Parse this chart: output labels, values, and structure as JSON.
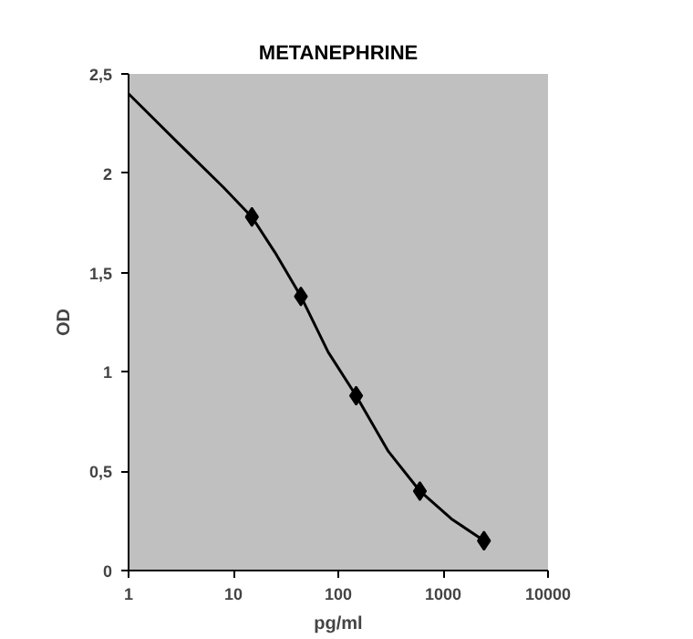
{
  "chart_data": {
    "type": "line",
    "title": "METANEPHRINE",
    "xlabel": "pg/ml",
    "ylabel": "OD",
    "log": "x",
    "xlim": [
      1,
      10000
    ],
    "xticks": [
      1,
      10,
      100,
      1000,
      10000
    ],
    "ylim": [
      0,
      2.5
    ],
    "yticks": [
      {
        "value": 0,
        "label": "0"
      },
      {
        "value": 0.5,
        "label": "0,5"
      },
      {
        "value": 1,
        "label": "1"
      },
      {
        "value": 1.5,
        "label": "1,5"
      },
      {
        "value": 2,
        "label": "2"
      },
      {
        "value": 2.5,
        "label": "2,5"
      }
    ],
    "grid": false,
    "series": [
      {
        "marker": "none",
        "color": "#000000",
        "x": [
          1,
          3,
          8,
          15,
          25,
          44,
          80,
          148,
          300,
          600,
          1200,
          2450
        ],
        "values": [
          2.4,
          2.15,
          1.93,
          1.78,
          1.6,
          1.38,
          1.1,
          0.88,
          0.6,
          0.4,
          0.26,
          0.15
        ]
      },
      {
        "type": "scatter",
        "marker": "diamond",
        "color": "#000000",
        "x": [
          15,
          44,
          148,
          600,
          2450
        ],
        "values": [
          1.78,
          1.38,
          0.88,
          0.4,
          0.15
        ]
      }
    ]
  }
}
